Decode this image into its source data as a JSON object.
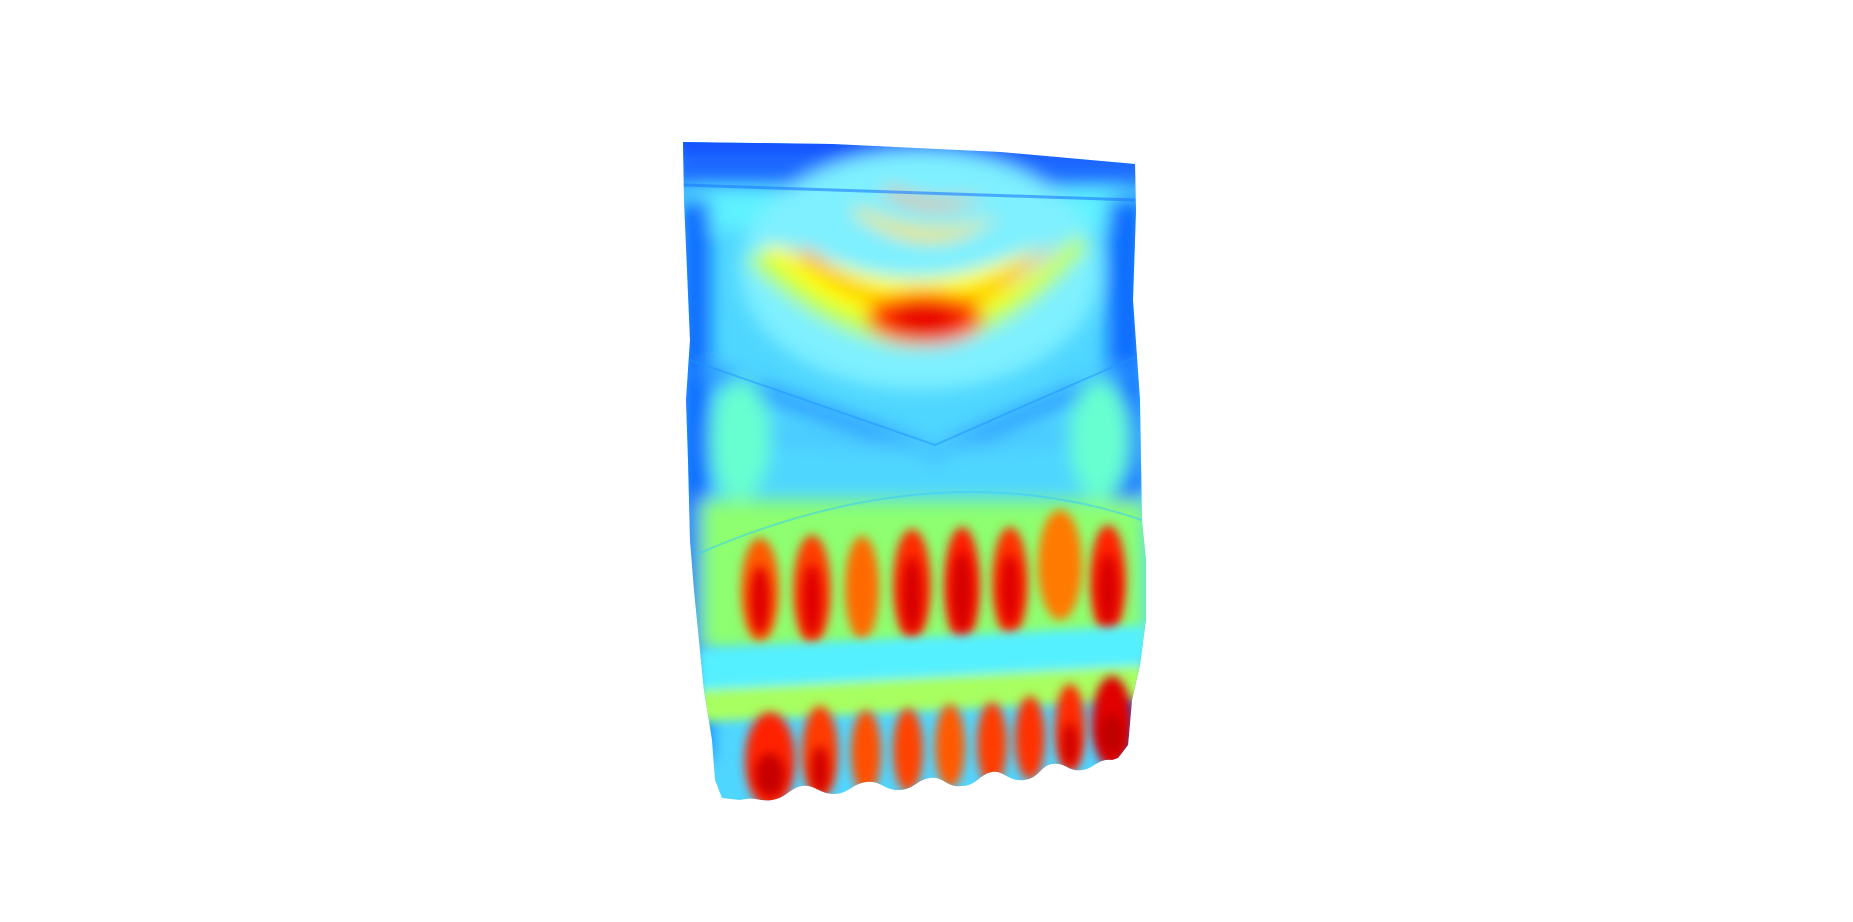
{
  "view": {
    "background": "#ffffff",
    "colormap": "jet",
    "colors": {
      "low": "#0010ff",
      "low_mid": "#00a0ff",
      "mid": "#00ffff",
      "mid_high": "#ffff00",
      "high_mid": "#ff9900",
      "high": "#e60000"
    }
  },
  "mesh": {
    "description_icon": "deformed-surface-heatmap",
    "panels": [
      "top-band",
      "upper-dome",
      "middle-cross",
      "lower-rib-band",
      "bottom-rib-band"
    ]
  }
}
